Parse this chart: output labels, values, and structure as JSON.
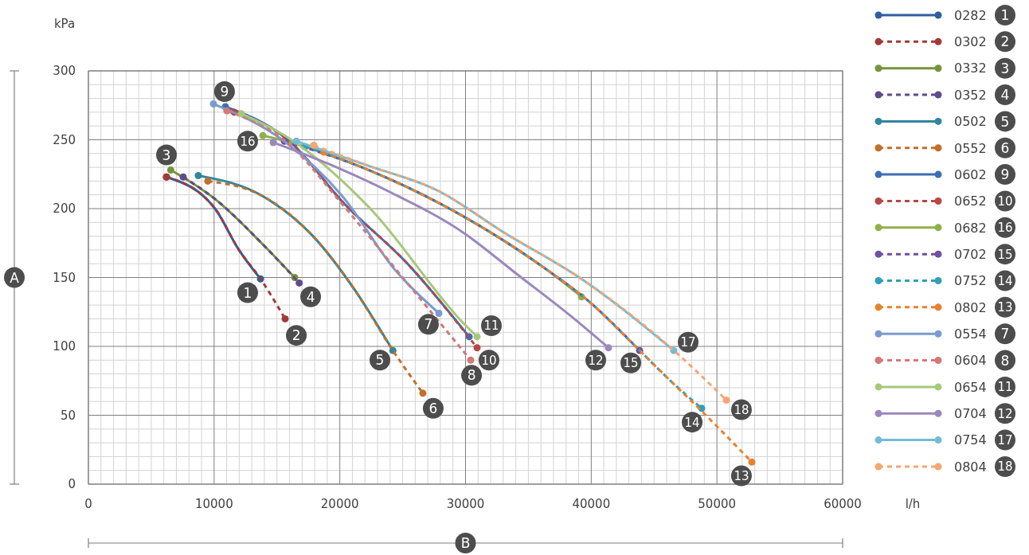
{
  "chart_data": {
    "type": "line",
    "xlabel": "l/h",
    "ylabel": "kPa",
    "xlim": [
      0,
      60000
    ],
    "ylim": [
      0,
      300
    ],
    "xticks": [
      0,
      10000,
      20000,
      30000,
      40000,
      50000,
      60000
    ],
    "yticks": [
      0,
      50,
      100,
      150,
      200,
      250,
      300
    ],
    "grid": true,
    "legend": "right",
    "series": [
      {
        "name": "0282",
        "color": "#2e5f9e",
        "line_style": "solid",
        "x": [
          6210,
          10070,
          11975,
          13690
        ],
        "values": [
          223,
          200,
          170,
          149
        ]
      },
      {
        "name": "0302",
        "color": "#a33a37",
        "line_style": "dashed",
        "x": [
          6210,
          10070,
          11975,
          13690,
          15650
        ],
        "values": [
          223,
          200,
          170,
          149,
          120
        ]
      },
      {
        "name": "0332",
        "color": "#76933c",
        "line_style": "solid",
        "x": [
          6550,
          10070,
          13880,
          16410
        ],
        "values": [
          228,
          207,
          174,
          150
        ]
      },
      {
        "name": "0352",
        "color": "#5f4b8b",
        "line_style": "dashed",
        "x": [
          7540,
          10070,
          13880,
          16770
        ],
        "values": [
          223,
          207,
          174,
          146
        ]
      },
      {
        "name": "0502",
        "color": "#31859c",
        "line_style": "solid",
        "x": [
          8740,
          13880,
          17870,
          21040,
          24220
        ],
        "values": [
          224,
          209,
          180,
          143,
          97
        ]
      },
      {
        "name": "0552",
        "color": "#c0702b",
        "line_style": "dashed",
        "x": [
          9500,
          13880,
          17870,
          21040,
          24220,
          26610
        ],
        "values": [
          220,
          209,
          180,
          143,
          97,
          66
        ]
      },
      {
        "name": "0602",
        "color": "#3d6eb3",
        "line_style": "solid",
        "x": [
          10900,
          15990,
          20210,
          25490,
          30290
        ],
        "values": [
          274,
          249,
          205,
          159,
          107
        ]
      },
      {
        "name": "0652",
        "color": "#b84744",
        "line_style": "dashed",
        "x": [
          11600,
          15990,
          20210,
          25490,
          30920
        ],
        "values": [
          270,
          249,
          205,
          159,
          99
        ]
      },
      {
        "name": "0682",
        "color": "#8fb04a",
        "line_style": "solid",
        "x": [
          13880,
          16500,
          22300,
          29900,
          36260,
          39220
        ],
        "values": [
          253,
          247,
          228,
          194,
          157,
          136
        ]
      },
      {
        "name": "0702",
        "color": "#7050a0",
        "line_style": "dashed",
        "x": [
          15590,
          22300,
          29900,
          36260,
          39640,
          43850
        ],
        "values": [
          249,
          228,
          194,
          157,
          134,
          97
        ]
      },
      {
        "name": "0752",
        "color": "#30a0b8",
        "line_style": "dashed",
        "x": [
          17230,
          22300,
          29900,
          36260,
          39640,
          43850,
          46190,
          48790
        ],
        "values": [
          245,
          228,
          194,
          157,
          134,
          97,
          76,
          55
        ]
      },
      {
        "name": "0802",
        "color": "#e8822e",
        "line_style": "dashed",
        "x": [
          18730,
          22300,
          29900,
          36260,
          39640,
          43850,
          46190,
          48790,
          52780
        ],
        "values": [
          241,
          228,
          194,
          157,
          134,
          97,
          76,
          53,
          16
        ]
      },
      {
        "name": "0554",
        "color": "#7a9bd0",
        "line_style": "solid",
        "x": [
          9950,
          15570,
          20210,
          24440,
          27880
        ],
        "values": [
          276,
          249,
          209,
          155,
          124
        ]
      },
      {
        "name": "0604",
        "color": "#d47878",
        "line_style": "dashed",
        "x": [
          11020,
          15800,
          20210,
          25000,
          30410
        ],
        "values": [
          271,
          248,
          203,
          150,
          90
        ]
      },
      {
        "name": "0654",
        "color": "#a6c87a",
        "line_style": "solid",
        "x": [
          12160,
          15970,
          22320,
          29920,
          30920
        ],
        "values": [
          269,
          251,
          201,
          116,
          107
        ]
      },
      {
        "name": "0704",
        "color": "#9a88bd",
        "line_style": "solid",
        "x": [
          14700,
          20000,
          24000,
          29920,
          34150,
          38380,
          41370
        ],
        "values": [
          248,
          229,
          212,
          182,
          152,
          122,
          99
        ]
      },
      {
        "name": "0754",
        "color": "#72bcd6",
        "line_style": "solid",
        "x": [
          16540,
          22320,
          27810,
          33000,
          39220,
          46570
        ],
        "values": [
          249,
          231,
          213,
          183,
          149,
          97
        ]
      },
      {
        "name": "0804",
        "color": "#f5a672",
        "line_style": "dashed",
        "x": [
          17930,
          22320,
          27810,
          33000,
          39220,
          46570,
          50750
        ],
        "values": [
          246,
          231,
          213,
          183,
          149,
          97,
          61
        ]
      }
    ],
    "annotations": [
      {
        "text": "1",
        "x": 12670,
        "y": 139
      },
      {
        "text": "2",
        "x": 16540,
        "y": 108
      },
      {
        "text": "3",
        "x": 6210,
        "y": 239
      },
      {
        "text": "4",
        "x": 17680,
        "y": 136
      },
      {
        "text": "5",
        "x": 23190,
        "y": 90
      },
      {
        "text": "6",
        "x": 27430,
        "y": 55
      },
      {
        "text": "9",
        "x": 10830,
        "y": 285
      },
      {
        "text": "10",
        "x": 31870,
        "y": 90
      },
      {
        "text": "16",
        "x": 12670,
        "y": 249
      },
      {
        "text": "15",
        "x": 43150,
        "y": 88
      },
      {
        "text": "14",
        "x": 48030,
        "y": 45
      },
      {
        "text": "13",
        "x": 51950,
        "y": 6
      },
      {
        "text": "7",
        "x": 27050,
        "y": 116
      },
      {
        "text": "8",
        "x": 30480,
        "y": 79
      },
      {
        "text": "11",
        "x": 32060,
        "y": 115
      },
      {
        "text": "12",
        "x": 40360,
        "y": 90
      },
      {
        "text": "17",
        "x": 47710,
        "y": 103
      },
      {
        "text": "18",
        "x": 51950,
        "y": 54
      },
      "A",
      "B"
    ]
  }
}
